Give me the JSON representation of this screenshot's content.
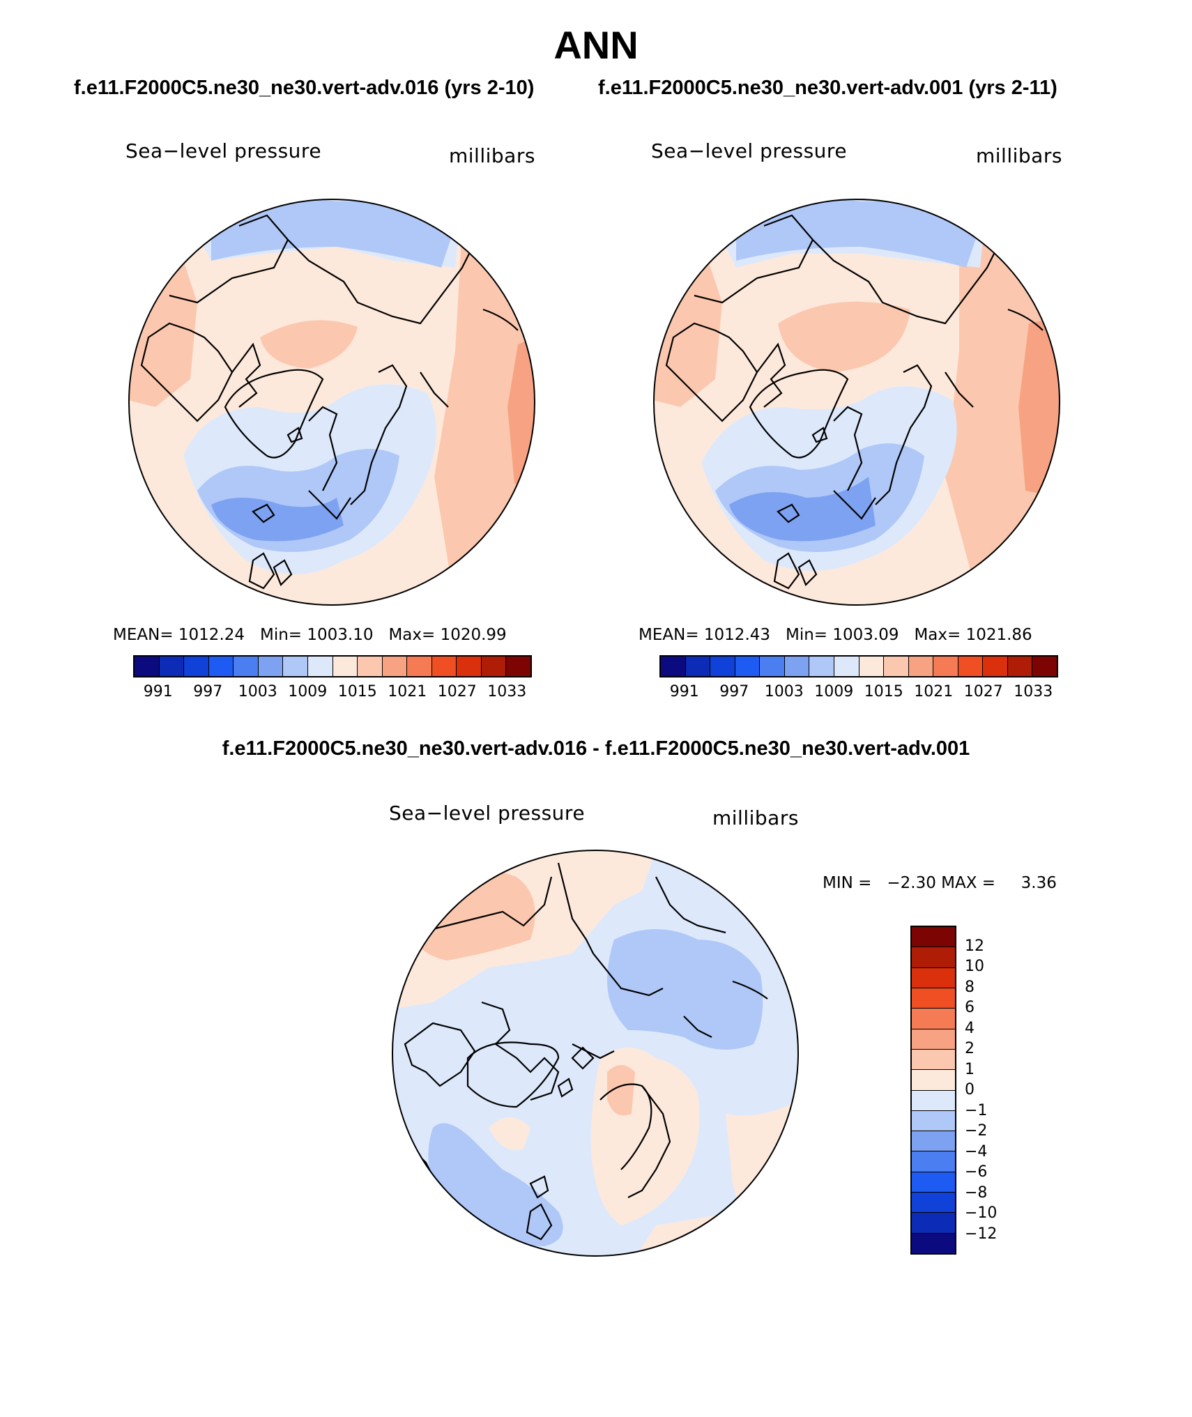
{
  "title": "ANN",
  "panels": [
    {
      "case_title": "f.e11.F2000C5.ne30_ne30.vert-adv.016 (yrs 2-10)",
      "variable": "Sea−level pressure",
      "units": "millibars",
      "stats": {
        "mean_label": "MEAN=",
        "mean": "1012.24",
        "min_label": "Min=",
        "min": "1003.10",
        "max_label": "Max=",
        "max": "1020.99"
      }
    },
    {
      "case_title": "f.e11.F2000C5.ne30_ne30.vert-adv.001 (yrs 2-11)",
      "variable": "Sea−level pressure",
      "units": "millibars",
      "stats": {
        "mean_label": "MEAN=",
        "mean": "1012.43",
        "min_label": "Min=",
        "min": "1003.09",
        "max_label": "Max=",
        "max": "1021.86"
      }
    }
  ],
  "colorbar_horizontal": {
    "colors": [
      "#0b0a7e",
      "#0c2bb6",
      "#1041d8",
      "#1d5bf2",
      "#4b7ef0",
      "#7ea2f2",
      "#b0c8f8",
      "#dde9fb",
      "#fde9dc",
      "#fbc8af",
      "#f7a383",
      "#f57b55",
      "#ef4f22",
      "#da300b",
      "#b01d06",
      "#7c0504"
    ],
    "labels": [
      "991",
      "997",
      "1003",
      "1009",
      "1015",
      "1021",
      "1027",
      "1033"
    ]
  },
  "difference": {
    "title": "f.e11.F2000C5.ne30_ne30.vert-adv.016 - f.e11.F2000C5.ne30_ne30.vert-adv.001",
    "variable": "Sea−level pressure",
    "units": "millibars",
    "min_label": "MIN =",
    "min": "−2.30",
    "max_label": "MAX =",
    "max": "3.36",
    "colorbar": {
      "colors_top_to_bottom": [
        "#7c0504",
        "#b01d06",
        "#da300b",
        "#ef4f22",
        "#f57b55",
        "#f7a383",
        "#fbc8af",
        "#fde9dc",
        "#dde9fb",
        "#b0c8f8",
        "#7ea2f2",
        "#4b7ef0",
        "#1d5bf2",
        "#1041d8",
        "#0c2bb6",
        "#0b0a7e"
      ],
      "labels": [
        "12",
        "10",
        "8",
        "6",
        "4",
        "2",
        "1",
        "0",
        "−1",
        "−2",
        "−4",
        "−6",
        "−8",
        "−10",
        "−12"
      ]
    }
  },
  "map_colors": {
    "ocean_light_red": "#fde9dc",
    "light_red": "#fbc8af",
    "mid_red": "#f7a383",
    "light_blue": "#dde9fb",
    "mid_blue": "#b0c8f8",
    "blue": "#7ea2f2",
    "coast": "#000000"
  }
}
